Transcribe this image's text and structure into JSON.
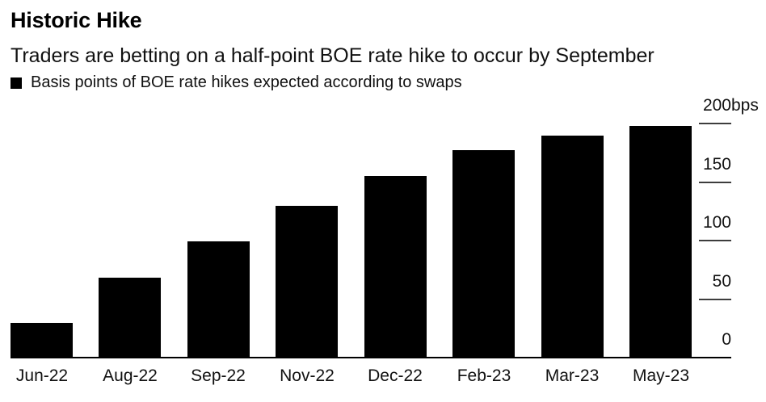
{
  "header": {
    "title": "Historic Hike",
    "subtitle": "Traders are betting on a half-point BOE rate hike to occur by September",
    "legend": {
      "marker": "black-square",
      "marker_color": "#000000",
      "label": "Basis points of BOE rate hikes expected according to swaps"
    }
  },
  "chart_data": {
    "type": "bar",
    "title": "Historic Hike",
    "subtitle": "Traders are betting on a half-point BOE rate hike to occur by September",
    "series_name": "Basis points of BOE rate hikes expected according to swaps",
    "categories": [
      "Jun-22",
      "Aug-22",
      "Sep-22",
      "Nov-22",
      "Dec-22",
      "Feb-23",
      "Mar-23",
      "May-23"
    ],
    "values": [
      30,
      68,
      99,
      130,
      155,
      177,
      190,
      198
    ],
    "unit": "bps",
    "bar_color": "#000000",
    "background_color": "#ffffff",
    "ylim": [
      0,
      200
    ],
    "yticks": [
      {
        "value": 0,
        "label": "0",
        "suffix": ""
      },
      {
        "value": 50,
        "label": "50",
        "suffix": ""
      },
      {
        "value": 100,
        "label": "100",
        "suffix": ""
      },
      {
        "value": 150,
        "label": "150",
        "suffix": ""
      },
      {
        "value": 200,
        "label": "200",
        "suffix": "bps"
      }
    ],
    "y_axis_side": "right",
    "grid": false,
    "legend_position": "top-left"
  }
}
